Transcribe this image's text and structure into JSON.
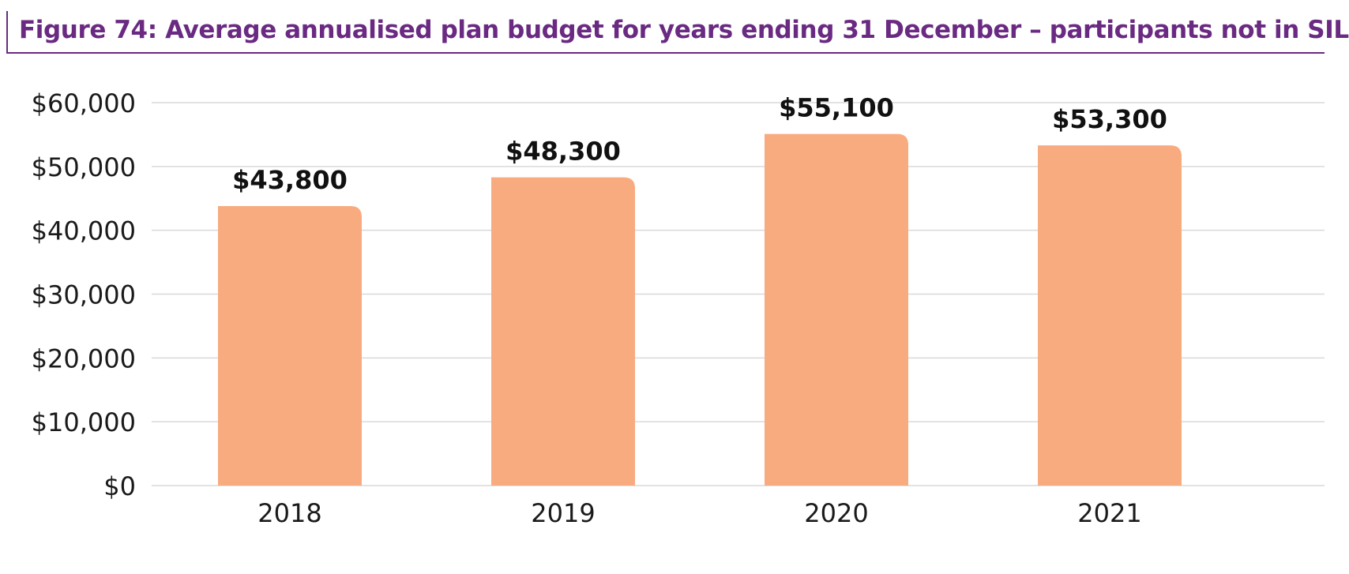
{
  "figure": {
    "title": "Figure 74: Average annualised plan budget for years ending 31 December – participants not in SIL"
  },
  "colors": {
    "title": "#6a2a82",
    "bar": "#f9ab80",
    "grid": "#d9d9d9",
    "text": "#1a1a1a"
  },
  "chart_data": {
    "type": "bar",
    "title": "Figure 74: Average annualised plan budget for years ending 31 December – participants not in SIL",
    "categories": [
      "2018",
      "2019",
      "2020",
      "2021"
    ],
    "values": [
      43800,
      48300,
      55100,
      53300
    ],
    "data_labels": [
      "$43,800",
      "$48,300",
      "$55,100",
      "$53,300"
    ],
    "ylim": [
      0,
      60000
    ],
    "y_ticks": [
      0,
      10000,
      20000,
      30000,
      40000,
      50000,
      60000
    ],
    "y_tick_labels": [
      "$0",
      "$10,000",
      "$20,000",
      "$30,000",
      "$40,000",
      "$50,000",
      "$60,000"
    ],
    "xlabel": "",
    "ylabel": "",
    "grid": true,
    "legend": "none"
  }
}
